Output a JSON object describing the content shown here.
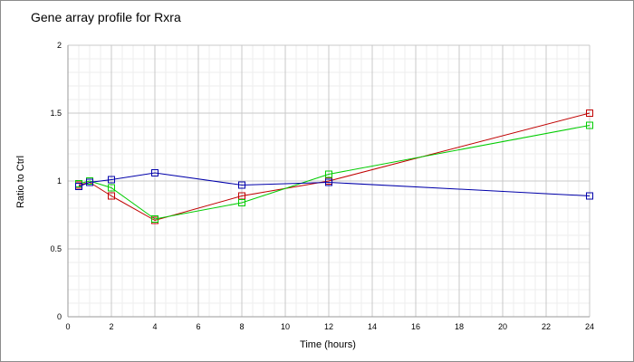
{
  "chart_data": {
    "type": "line",
    "title": "Gene array profile for Rxra",
    "xlabel": "Time (hours)",
    "ylabel": "Ratio to Ctrl",
    "xlim": [
      0,
      24
    ],
    "ylim": [
      0,
      2
    ],
    "x_ticks": [
      "0",
      "2",
      "4",
      "6",
      "8",
      "10",
      "12",
      "14",
      "16",
      "18",
      "20",
      "22",
      "24"
    ],
    "y_ticks": [
      "0",
      "0.5",
      "1",
      "1.5",
      "2"
    ],
    "grid": true,
    "legend": "none",
    "series": [
      {
        "color": "#c00000",
        "marker": "square",
        "x": [
          0.5,
          1,
          2,
          4,
          8,
          12,
          24
        ],
        "y": [
          0.97,
          0.99,
          0.89,
          0.71,
          0.89,
          1.0,
          1.5
        ]
      },
      {
        "color": "#00cc00",
        "marker": "square",
        "x": [
          0.5,
          1,
          2,
          4,
          8,
          12,
          24
        ],
        "y": [
          0.98,
          1.0,
          0.95,
          0.72,
          0.84,
          1.05,
          1.41
        ]
      },
      {
        "color": "#0000aa",
        "marker": "square",
        "x": [
          0.5,
          1,
          2,
          4,
          8,
          12,
          24
        ],
        "y": [
          0.96,
          0.99,
          1.01,
          1.06,
          0.97,
          0.99,
          0.89
        ]
      }
    ]
  }
}
